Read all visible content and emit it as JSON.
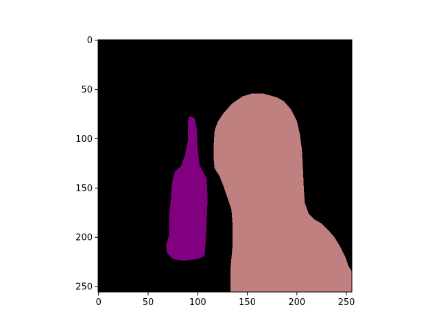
{
  "chart_data": {
    "type": "segmentation_mask",
    "image_size": [
      256,
      256
    ],
    "xlim": [
      0,
      255
    ],
    "ylim": [
      255,
      0
    ],
    "x_ticks": [
      0,
      50,
      100,
      150,
      200,
      250
    ],
    "y_ticks": [
      0,
      50,
      100,
      150,
      200,
      250
    ],
    "x_tick_labels": [
      "0",
      "50",
      "100",
      "150",
      "200",
      "250"
    ],
    "y_tick_labels": [
      "0",
      "50",
      "100",
      "150",
      "200",
      "250"
    ],
    "background_color": "#000000",
    "regions": [
      {
        "id": "bottle",
        "color": "#800080",
        "outline": [
          [
            91,
            77
          ],
          [
            97,
            79
          ],
          [
            99,
            90
          ],
          [
            100,
            110
          ],
          [
            102,
            127
          ],
          [
            109,
            140
          ],
          [
            110,
            160
          ],
          [
            109,
            185
          ],
          [
            108,
            205
          ],
          [
            107,
            219
          ],
          [
            100,
            222
          ],
          [
            85,
            224
          ],
          [
            75,
            222
          ],
          [
            69,
            216
          ],
          [
            68,
            208
          ],
          [
            71,
            198
          ],
          [
            71,
            180
          ],
          [
            73,
            160
          ],
          [
            74,
            145
          ],
          [
            77,
            133
          ],
          [
            83,
            128
          ],
          [
            87,
            117
          ],
          [
            90,
            102
          ],
          [
            90,
            85
          ]
        ]
      },
      {
        "id": "person",
        "color": "#c08080",
        "outline": [
          [
            133,
            255
          ],
          [
            133,
            233
          ],
          [
            135,
            210
          ],
          [
            135,
            185
          ],
          [
            134,
            172
          ],
          [
            130,
            160
          ],
          [
            126,
            148
          ],
          [
            122,
            138
          ],
          [
            117,
            130
          ],
          [
            116,
            120
          ],
          [
            116,
            108
          ],
          [
            117,
            92
          ],
          [
            120,
            83
          ],
          [
            126,
            74
          ],
          [
            135,
            64
          ],
          [
            145,
            57
          ],
          [
            155,
            54
          ],
          [
            166,
            54
          ],
          [
            180,
            58
          ],
          [
            187,
            62
          ],
          [
            194,
            70
          ],
          [
            200,
            82
          ],
          [
            203,
            95
          ],
          [
            205,
            110
          ],
          [
            206,
            128
          ],
          [
            207,
            150
          ],
          [
            208,
            165
          ],
          [
            212,
            176
          ],
          [
            218,
            182
          ],
          [
            225,
            186
          ],
          [
            232,
            193
          ],
          [
            238,
            200
          ],
          [
            244,
            210
          ],
          [
            249,
            220
          ],
          [
            252,
            229
          ],
          [
            255,
            234
          ],
          [
            255,
            255
          ]
        ]
      }
    ]
  }
}
